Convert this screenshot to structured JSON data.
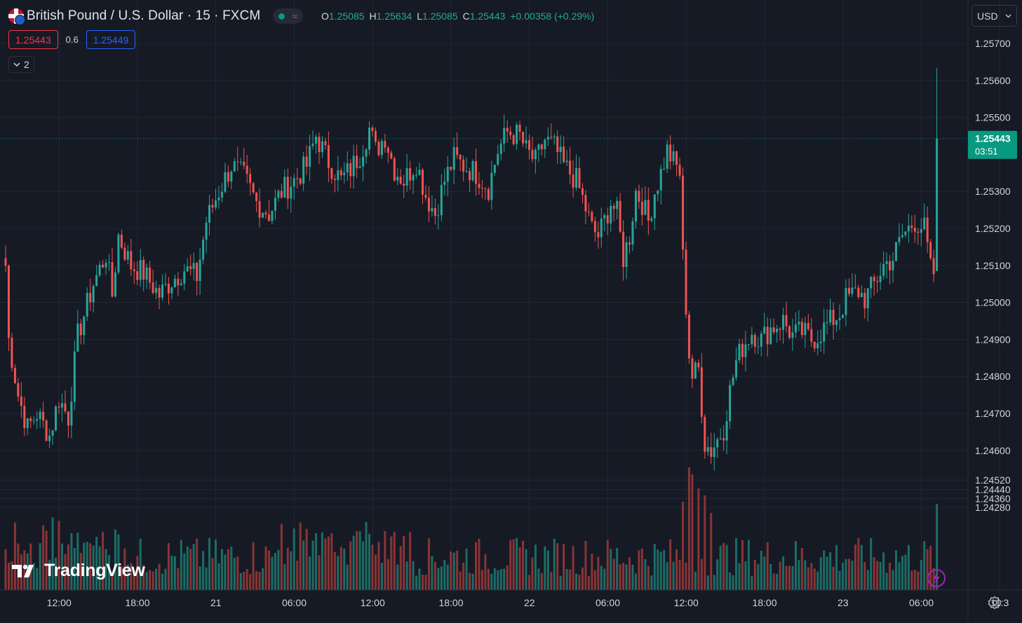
{
  "header": {
    "title": "British Pound / U.S. Dollar · 15 · FXCM",
    "status_icon": "market-open-dot",
    "ohlc": [
      {
        "label": "O",
        "value": "1.25085"
      },
      {
        "label": "H",
        "value": "1.25634"
      },
      {
        "label": "L",
        "value": "1.25085"
      },
      {
        "label": "C",
        "value": "1.25443"
      }
    ],
    "change": "+0.00358 (+0.29%)",
    "bid": "1.25443",
    "spread": "0.6",
    "ask": "1.25449",
    "collapse_count": "2"
  },
  "currency_select": {
    "value": "USD"
  },
  "brand": {
    "name": "TradingView"
  },
  "colors": {
    "background": "#161a25",
    "grid": "#232733",
    "up": "#26a69a",
    "down": "#ef5350",
    "up_volume": "#1b6d66",
    "down_volume": "#8a3435",
    "price_label": "#089981",
    "bid_border": "#f23645",
    "ask_border": "#2962ff",
    "text": "#d1d4dc"
  },
  "chart_data": {
    "type": "candlestick",
    "symbol": "GBPUSD",
    "interval": "15",
    "y_scale": "linear",
    "ylim": [
      1.2422,
      1.2581
    ],
    "y_ticks": [
      "1.25700",
      "1.25600",
      "1.25500",
      "1.25300",
      "1.25200",
      "1.25100",
      "1.25000",
      "1.24900",
      "1.24800",
      "1.24700",
      "1.24600",
      "1.24520",
      "1.24440",
      "1.24360",
      "1.24280"
    ],
    "x_ticks": [
      "12:00",
      "18:00",
      "21",
      "06:00",
      "12:00",
      "18:00",
      "22",
      "06:00",
      "12:00",
      "18:00",
      "23",
      "06:00",
      "11:3"
    ],
    "x_tick_bar_index": [
      9,
      34,
      59,
      84,
      109,
      134,
      159,
      184,
      209,
      234,
      259,
      284,
      309
    ],
    "last_price": "1.25443",
    "countdown": "03:51",
    "grid": true,
    "anchors": [
      [
        0,
        1.251
      ],
      [
        1,
        1.249
      ],
      [
        4,
        1.2475
      ],
      [
        7,
        1.2466
      ],
      [
        10,
        1.247
      ],
      [
        14,
        1.2464
      ],
      [
        17,
        1.2474
      ],
      [
        20,
        1.2469
      ],
      [
        23,
        1.2491
      ],
      [
        28,
        1.2505
      ],
      [
        32,
        1.2513
      ],
      [
        34,
        1.2502
      ],
      [
        36,
        1.2518
      ],
      [
        40,
        1.251
      ],
      [
        44,
        1.2508
      ],
      [
        49,
        1.2502
      ],
      [
        53,
        1.2506
      ],
      [
        57,
        1.2509
      ],
      [
        61,
        1.2507
      ],
      [
        64,
        1.2522
      ],
      [
        68,
        1.253
      ],
      [
        72,
        1.2537
      ],
      [
        76,
        1.2534
      ],
      [
        80,
        1.2527
      ],
      [
        84,
        1.2524
      ],
      [
        88,
        1.253
      ],
      [
        92,
        1.2533
      ],
      [
        96,
        1.2537
      ],
      [
        99,
        1.2545
      ],
      [
        103,
        1.2538
      ],
      [
        107,
        1.2533
      ],
      [
        110,
        1.2536
      ],
      [
        113,
        1.254
      ],
      [
        116,
        1.2547
      ],
      [
        118,
        1.2541
      ],
      [
        121,
        1.2545
      ],
      [
        124,
        1.2536
      ],
      [
        127,
        1.2533
      ],
      [
        131,
        1.2538
      ],
      [
        134,
        1.2529
      ],
      [
        137,
        1.2524
      ],
      [
        140,
        1.2533
      ],
      [
        143,
        1.2539
      ],
      [
        146,
        1.2537
      ],
      [
        150,
        1.2535
      ],
      [
        154,
        1.2531
      ],
      [
        157,
        1.2541
      ],
      [
        160,
        1.2546
      ],
      [
        164,
        1.2545
      ],
      [
        166,
        1.2541
      ],
      [
        169,
        1.2538
      ],
      [
        172,
        1.2544
      ],
      [
        175,
        1.2542
      ],
      [
        178,
        1.2537
      ],
      [
        182,
        1.2533
      ],
      [
        184,
        1.2528
      ],
      [
        187,
        1.252
      ],
      [
        189,
        1.2518
      ],
      [
        191,
        1.2522
      ],
      [
        193,
        1.2527
      ],
      [
        195,
        1.2524
      ],
      [
        197,
        1.2512
      ],
      [
        199,
        1.2518
      ],
      [
        201,
        1.253
      ],
      [
        203,
        1.2527
      ],
      [
        205,
        1.2522
      ],
      [
        207,
        1.253
      ],
      [
        209,
        1.2535
      ],
      [
        211,
        1.2541
      ],
      [
        213,
        1.2538
      ],
      [
        215,
        1.2535
      ],
      [
        216,
        1.2512
      ],
      [
        218,
        1.2486
      ],
      [
        219,
        1.248
      ],
      [
        221,
        1.2482
      ],
      [
        223,
        1.2462
      ],
      [
        225,
        1.246
      ],
      [
        227,
        1.2463
      ],
      [
        229,
        1.2466
      ],
      [
        231,
        1.2476
      ],
      [
        233,
        1.2484
      ],
      [
        235,
        1.2488
      ],
      [
        238,
        1.2492
      ],
      [
        241,
        1.249
      ],
      [
        244,
        1.2493
      ],
      [
        248,
        1.2495
      ],
      [
        251,
        1.2491
      ],
      [
        254,
        1.2492
      ],
      [
        257,
        1.249
      ],
      [
        259,
        1.2491
      ],
      [
        262,
        1.2494
      ],
      [
        266,
        1.2497
      ],
      [
        268,
        1.2501
      ],
      [
        272,
        1.2503
      ],
      [
        274,
        1.2501
      ],
      [
        277,
        1.2505
      ],
      [
        280,
        1.251
      ],
      [
        283,
        1.2512
      ],
      [
        286,
        1.2518
      ],
      [
        290,
        1.2522
      ],
      [
        293,
        1.252
      ],
      [
        295,
        1.2509
      ],
      [
        296,
        1.2508
      ],
      [
        297,
        1.25443
      ]
    ],
    "bars": 298,
    "volume_spikes": [
      [
        216,
        126
      ],
      [
        218,
        175
      ],
      [
        219,
        165
      ],
      [
        221,
        145
      ],
      [
        223,
        135
      ],
      [
        225,
        110
      ],
      [
        297,
        123
      ]
    ]
  }
}
